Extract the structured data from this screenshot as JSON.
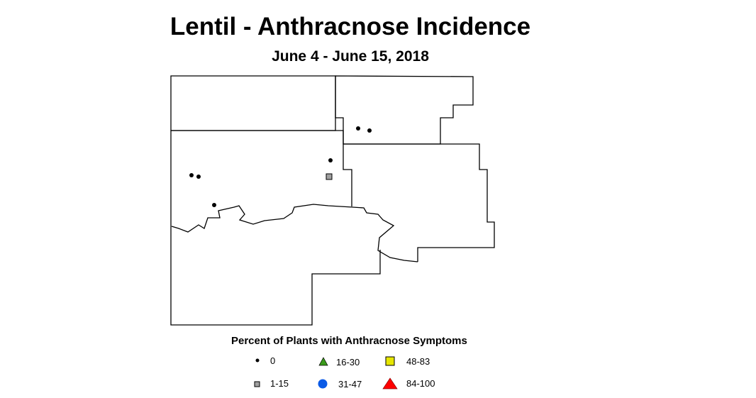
{
  "title": "Lentil - Anthracnose Incidence",
  "subtitle": "June 4 - June 15, 2018",
  "legend": {
    "title": "Percent of Plants with Anthracnose Symptoms",
    "classes": [
      {
        "label": "0",
        "symbol": "dot",
        "color": "#000000"
      },
      {
        "label": "1-15",
        "symbol": "square",
        "color": "#a0a0a0"
      },
      {
        "label": "16-30",
        "symbol": "triangle",
        "color": "#3a9a1a"
      },
      {
        "label": "31-47",
        "symbol": "circle",
        "color": "#0a5ae6"
      },
      {
        "label": "48-83",
        "symbol": "square",
        "color": "#e6e600"
      },
      {
        "label": "84-100",
        "symbol": "triangle",
        "color": "#ff0000"
      }
    ]
  },
  "observations": [
    {
      "class": "0"
    },
    {
      "class": "0"
    },
    {
      "class": "0"
    },
    {
      "class": "1-15"
    },
    {
      "class": "0"
    },
    {
      "class": "0"
    },
    {
      "class": "0"
    }
  ]
}
